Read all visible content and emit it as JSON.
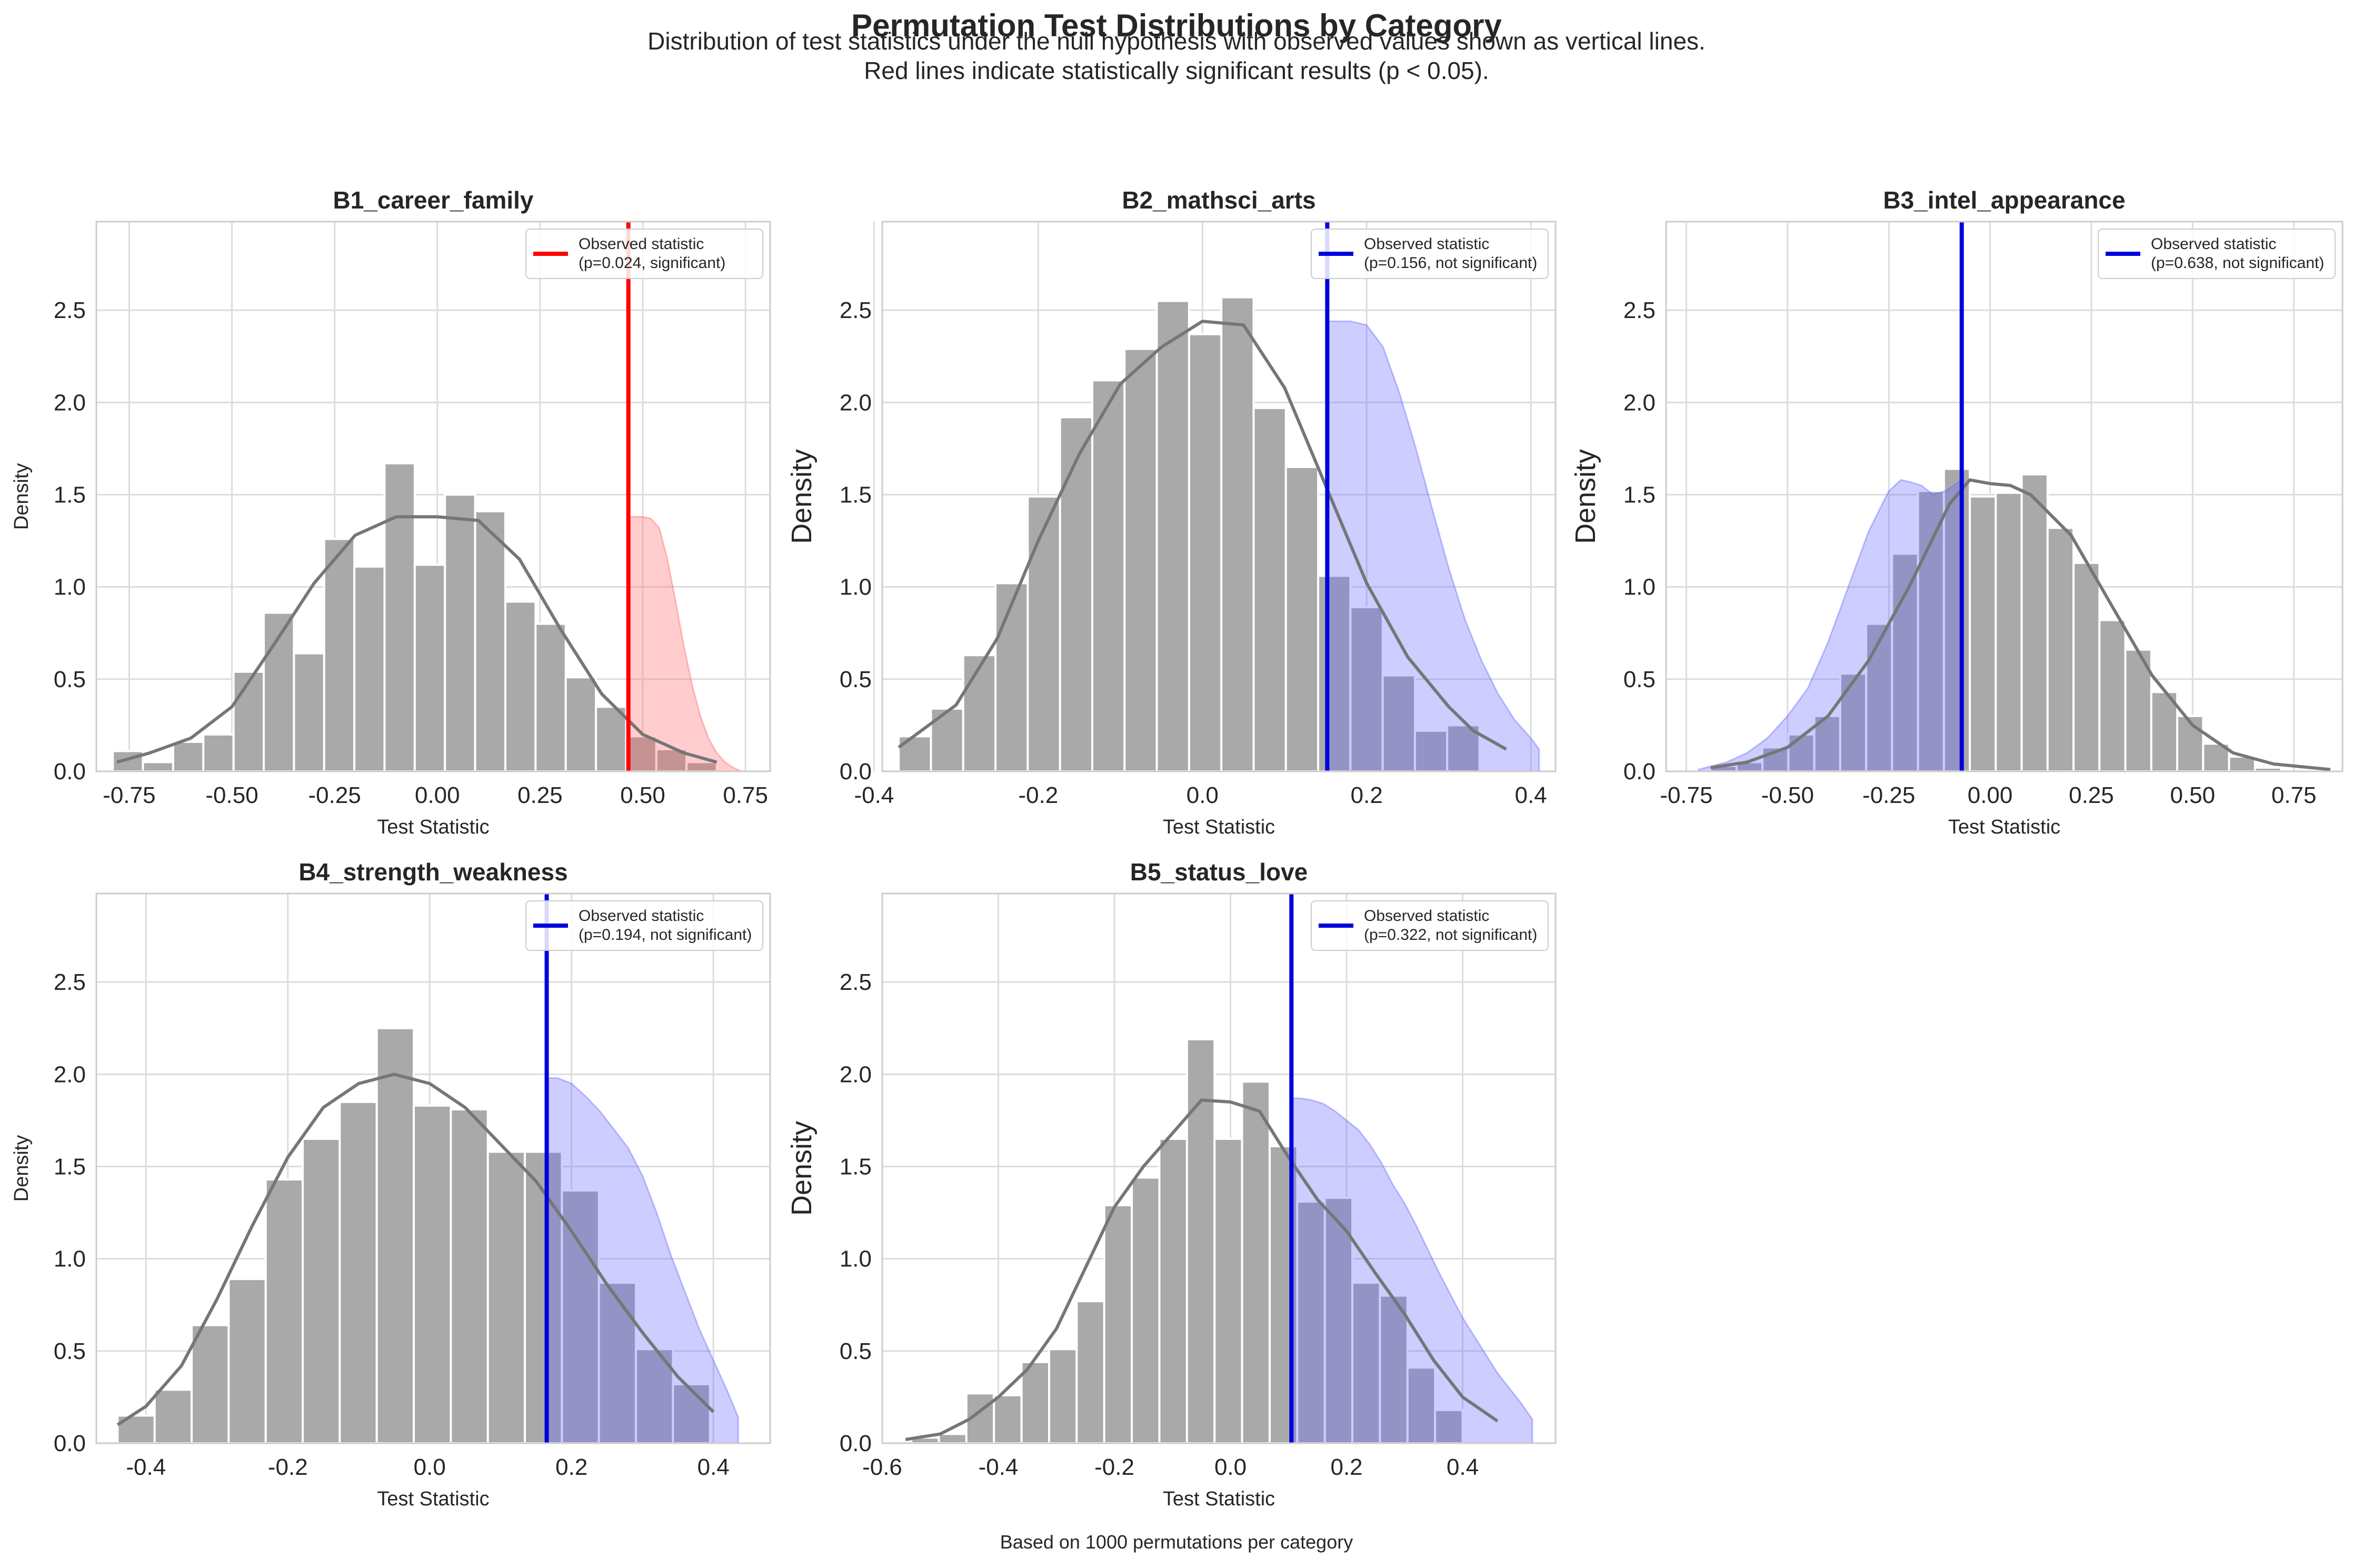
{
  "figure": {
    "title": "Permutation Test Distributions by Category",
    "subtitle_line1": "Distribution of test statistics under the null hypothesis with observed values shown as vertical lines.",
    "subtitle_line2": "Red lines indicate statistically significant results (p < 0.05).",
    "footnote": "Based on 1000 permutations per category"
  },
  "colors": {
    "hist_bar": "#a9a9a9",
    "kde_line": "#767676",
    "significant": "#ff0000",
    "not_significant": "#0000dd",
    "sig_fill": "#ffb3b3",
    "nonsig_fill": "#b3b3ff",
    "grid": "#dcdcdc",
    "axes_edge": "#cccccc"
  },
  "chart_data": [
    {
      "type": "bar",
      "title": "B1_career_family",
      "xlabel": "Test Statistic",
      "ylabel": "Density",
      "xlim": [
        -0.83,
        0.81
      ],
      "ylim": [
        0,
        2.98
      ],
      "xticks": [
        -0.75,
        -0.5,
        -0.25,
        0.0,
        0.25,
        0.5,
        0.75
      ],
      "xtick_labels": [
        "-0.75",
        "-0.50",
        "-0.25",
        "0.00",
        "0.25",
        "0.50",
        "0.75"
      ],
      "yticks": [
        0.0,
        0.5,
        1.0,
        1.5,
        2.0,
        2.5
      ],
      "ytick_labels": [
        "0.0",
        "0.5",
        "1.0",
        "1.5",
        "2.0",
        "2.5"
      ],
      "bin_start": -0.79,
      "bin_width": 0.0735,
      "values": [
        0.11,
        0.05,
        0.16,
        0.2,
        0.54,
        0.86,
        0.64,
        1.26,
        1.11,
        1.67,
        1.12,
        1.5,
        1.41,
        0.92,
        0.8,
        0.51,
        0.35,
        0.19,
        0.12,
        0.05
      ],
      "kde_x": [
        -0.78,
        -0.7,
        -0.6,
        -0.5,
        -0.4,
        -0.3,
        -0.2,
        -0.1,
        0.0,
        0.1,
        0.2,
        0.3,
        0.4,
        0.5,
        0.6,
        0.68
      ],
      "kde_y": [
        0.05,
        0.1,
        0.18,
        0.35,
        0.68,
        1.02,
        1.28,
        1.38,
        1.38,
        1.36,
        1.15,
        0.77,
        0.42,
        0.2,
        0.1,
        0.05
      ],
      "observed": 0.465,
      "observed_p": 0.024,
      "significant": true,
      "legend_label": "Observed statistic",
      "legend_detail": "(p=0.024, significant)",
      "legend_position": "upper right",
      "tail_x": [
        0.465,
        0.48,
        0.5,
        0.52,
        0.54,
        0.56,
        0.58,
        0.6,
        0.62,
        0.64,
        0.66,
        0.68,
        0.7,
        0.72,
        0.74
      ],
      "tail_y": [
        1.38,
        1.38,
        1.38,
        1.37,
        1.32,
        1.15,
        0.92,
        0.68,
        0.47,
        0.3,
        0.18,
        0.1,
        0.05,
        0.02,
        0.0
      ]
    },
    {
      "type": "bar",
      "title": "B2_mathsci_arts",
      "xlabel": "Test Statistic",
      "ylabel": "Density",
      "xlim": [
        -0.39,
        0.43
      ],
      "ylim": [
        0,
        2.98
      ],
      "xticks": [
        -0.4,
        -0.2,
        0.0,
        0.2,
        0.4
      ],
      "xtick_labels": [
        "-0.4",
        "-0.2",
        "0.0",
        "0.2",
        "0.4"
      ],
      "yticks": [
        0.0,
        0.5,
        1.0,
        1.5,
        2.0,
        2.5
      ],
      "ytick_labels": [
        "0.0",
        "0.5",
        "1.0",
        "1.5",
        "2.0",
        "2.5"
      ],
      "bin_start": -0.37,
      "bin_width": 0.0393,
      "values": [
        0.19,
        0.34,
        0.63,
        1.02,
        1.49,
        1.92,
        2.12,
        2.29,
        2.55,
        2.37,
        2.57,
        1.97,
        1.65,
        1.06,
        0.89,
        0.52,
        0.22,
        0.25
      ],
      "kde_x": [
        -0.37,
        -0.3,
        -0.25,
        -0.2,
        -0.15,
        -0.1,
        -0.05,
        0.0,
        0.05,
        0.1,
        0.15,
        0.2,
        0.25,
        0.3,
        0.33,
        0.37
      ],
      "kde_y": [
        0.13,
        0.36,
        0.72,
        1.25,
        1.72,
        2.1,
        2.3,
        2.44,
        2.42,
        2.08,
        1.55,
        1.02,
        0.62,
        0.35,
        0.22,
        0.12
      ],
      "observed": 0.152,
      "observed_p": 0.156,
      "significant": false,
      "legend_label": "Observed statistic",
      "legend_detail": "(p=0.156, not significant)",
      "legend_position": "upper right",
      "tail_x": [
        0.152,
        0.16,
        0.18,
        0.2,
        0.22,
        0.24,
        0.26,
        0.28,
        0.3,
        0.32,
        0.34,
        0.36,
        0.38,
        0.4,
        0.41
      ],
      "tail_y": [
        2.44,
        2.44,
        2.44,
        2.42,
        2.3,
        2.05,
        1.75,
        1.42,
        1.1,
        0.82,
        0.6,
        0.42,
        0.28,
        0.18,
        0.12
      ]
    },
    {
      "type": "bar",
      "title": "B3_intel_appearance",
      "xlabel": "Test Statistic",
      "ylabel": "Density",
      "xlim": [
        -0.8,
        0.87
      ],
      "ylim": [
        0,
        2.98
      ],
      "xticks": [
        -0.75,
        -0.5,
        -0.25,
        0.0,
        0.25,
        0.5,
        0.75
      ],
      "xtick_labels": [
        "-0.75",
        "-0.50",
        "-0.25",
        "0.00",
        "0.25",
        "0.50",
        "0.75"
      ],
      "yticks": [
        0.0,
        0.5,
        1.0,
        1.5,
        2.0,
        2.5
      ],
      "ytick_labels": [
        "0.0",
        "0.5",
        "1.0",
        "1.5",
        "2.0",
        "2.5"
      ],
      "bin_start": -0.69,
      "bin_width": 0.064,
      "values": [
        0.03,
        0.05,
        0.13,
        0.2,
        0.3,
        0.53,
        0.8,
        1.18,
        1.52,
        1.64,
        1.49,
        1.51,
        1.61,
        1.32,
        1.13,
        0.82,
        0.66,
        0.43,
        0.3,
        0.15,
        0.08,
        0.02,
        0.0,
        0.0,
        0.01
      ],
      "kde_x": [
        -0.69,
        -0.6,
        -0.5,
        -0.4,
        -0.3,
        -0.2,
        -0.1,
        -0.05,
        0.0,
        0.05,
        0.1,
        0.2,
        0.3,
        0.4,
        0.5,
        0.6,
        0.7,
        0.84
      ],
      "kde_y": [
        0.02,
        0.05,
        0.13,
        0.3,
        0.6,
        1.0,
        1.45,
        1.58,
        1.56,
        1.55,
        1.5,
        1.28,
        0.9,
        0.52,
        0.25,
        0.1,
        0.04,
        0.01
      ],
      "observed": -0.07,
      "observed_p": 0.638,
      "significant": false,
      "legend_label": "Observed statistic",
      "legend_detail": "(p=0.638, not significant)",
      "legend_position": "upper right",
      "tail_x": [
        -0.72,
        -0.65,
        -0.6,
        -0.55,
        -0.5,
        -0.45,
        -0.4,
        -0.35,
        -0.3,
        -0.25,
        -0.22,
        -0.2,
        -0.17,
        -0.14,
        -0.11,
        -0.09,
        -0.07
      ],
      "tail_y": [
        0.01,
        0.05,
        0.1,
        0.18,
        0.3,
        0.45,
        0.7,
        1.0,
        1.3,
        1.52,
        1.58,
        1.57,
        1.55,
        1.5,
        1.52,
        1.55,
        1.58
      ]
    },
    {
      "type": "bar",
      "title": "B4_strength_weakness",
      "xlabel": "Test Statistic",
      "ylabel": "Density",
      "xlim": [
        -0.47,
        0.48
      ],
      "ylim": [
        0,
        2.98
      ],
      "xticks": [
        -0.4,
        -0.2,
        0.0,
        0.2,
        0.4
      ],
      "xtick_labels": [
        "-0.4",
        "-0.2",
        "0.0",
        "0.2",
        "0.4"
      ],
      "yticks": [
        0.0,
        0.5,
        1.0,
        1.5,
        2.0,
        2.5
      ],
      "ytick_labels": [
        "0.0",
        "0.5",
        "1.0",
        "1.5",
        "2.0",
        "2.5"
      ],
      "bin_start": -0.44,
      "bin_width": 0.0522,
      "values": [
        0.15,
        0.29,
        0.64,
        0.89,
        1.43,
        1.65,
        1.85,
        2.25,
        1.83,
        1.81,
        1.58,
        1.58,
        1.37,
        0.87,
        0.51,
        0.32
      ],
      "kde_x": [
        -0.44,
        -0.4,
        -0.35,
        -0.3,
        -0.25,
        -0.2,
        -0.15,
        -0.1,
        -0.05,
        0.0,
        0.05,
        0.1,
        0.15,
        0.2,
        0.25,
        0.3,
        0.35,
        0.4
      ],
      "kde_y": [
        0.1,
        0.2,
        0.42,
        0.78,
        1.18,
        1.55,
        1.82,
        1.95,
        2.0,
        1.95,
        1.82,
        1.62,
        1.42,
        1.15,
        0.86,
        0.6,
        0.36,
        0.17
      ],
      "observed": 0.165,
      "observed_p": 0.194,
      "significant": false,
      "legend_label": "Observed statistic",
      "legend_detail": "(p=0.194, not significant)",
      "legend_position": "upper right",
      "tail_x": [
        0.165,
        0.18,
        0.2,
        0.22,
        0.24,
        0.26,
        0.28,
        0.3,
        0.32,
        0.34,
        0.36,
        0.38,
        0.4,
        0.42,
        0.435
      ],
      "tail_y": [
        1.98,
        1.98,
        1.95,
        1.88,
        1.8,
        1.7,
        1.6,
        1.45,
        1.25,
        1.02,
        0.82,
        0.62,
        0.45,
        0.28,
        0.14
      ]
    },
    {
      "type": "bar",
      "title": "B5_status_love",
      "xlabel": "Test Statistic",
      "ylabel": "Density",
      "xlim": [
        -0.6,
        0.56
      ],
      "ylim": [
        0,
        2.98
      ],
      "xticks": [
        -0.6,
        -0.4,
        -0.2,
        0.0,
        0.2,
        0.4
      ],
      "xtick_labels": [
        "-0.6",
        "-0.4",
        "-0.2",
        "0.0",
        "0.2",
        "0.4"
      ],
      "yticks": [
        0.0,
        0.5,
        1.0,
        1.5,
        2.0,
        2.5
      ],
      "ytick_labels": [
        "0.0",
        "0.5",
        "1.0",
        "1.5",
        "2.0",
        "2.5"
      ],
      "bin_start": -0.55,
      "bin_width": 0.0475,
      "values": [
        0.03,
        0.05,
        0.27,
        0.26,
        0.44,
        0.51,
        0.77,
        1.29,
        1.44,
        1.65,
        2.19,
        1.65,
        1.96,
        1.61,
        1.31,
        1.33,
        0.87,
        0.8,
        0.41,
        0.18
      ],
      "kde_x": [
        -0.56,
        -0.5,
        -0.45,
        -0.4,
        -0.35,
        -0.3,
        -0.25,
        -0.2,
        -0.15,
        -0.1,
        -0.05,
        0.0,
        0.05,
        0.1,
        0.15,
        0.2,
        0.25,
        0.3,
        0.35,
        0.4,
        0.46
      ],
      "kde_y": [
        0.02,
        0.05,
        0.13,
        0.25,
        0.4,
        0.62,
        0.95,
        1.28,
        1.5,
        1.68,
        1.86,
        1.85,
        1.8,
        1.55,
        1.32,
        1.15,
        0.92,
        0.7,
        0.45,
        0.25,
        0.12
      ],
      "observed": 0.105,
      "observed_p": 0.322,
      "significant": false,
      "legend_label": "Observed statistic",
      "legend_detail": "(p=0.322, not significant)",
      "legend_position": "upper right",
      "tail_x": [
        0.105,
        0.12,
        0.14,
        0.16,
        0.18,
        0.2,
        0.22,
        0.24,
        0.26,
        0.28,
        0.3,
        0.32,
        0.34,
        0.36,
        0.38,
        0.4,
        0.42,
        0.44,
        0.46,
        0.48,
        0.5,
        0.52
      ],
      "tail_y": [
        1.87,
        1.87,
        1.86,
        1.84,
        1.8,
        1.75,
        1.7,
        1.62,
        1.52,
        1.4,
        1.3,
        1.18,
        1.05,
        0.92,
        0.8,
        0.68,
        0.58,
        0.48,
        0.38,
        0.3,
        0.22,
        0.13
      ]
    }
  ]
}
